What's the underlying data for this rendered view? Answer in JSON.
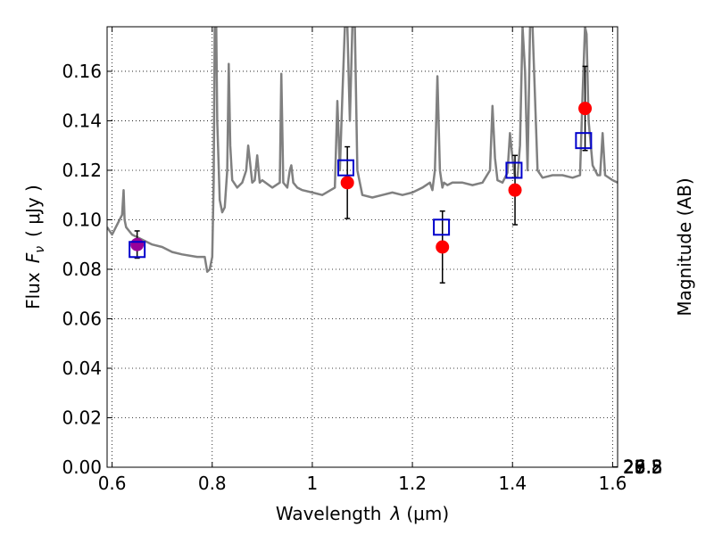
{
  "chart_data": {
    "type": "line",
    "title": "",
    "xlabel_main": "Wavelength",
    "xlabel_symbol": "λ",
    "xlabel_unit": "(μm)",
    "ylabel_main": "Flux",
    "ylabel_symbol": "F",
    "ylabel_subscript": "ν",
    "ylabel_unit": "( μJy )",
    "ylabel_right": "Magnitude (AB)",
    "xlim": [
      0.59,
      1.61
    ],
    "ylim": [
      0.0,
      0.178
    ],
    "grid": true,
    "x_ticks": [
      {
        "value": 0.6,
        "label": "0.6"
      },
      {
        "value": 0.8,
        "label": "0.8"
      },
      {
        "value": 1.0,
        "label": "1"
      },
      {
        "value": 1.2,
        "label": "1.2"
      },
      {
        "value": 1.4,
        "label": "1.4"
      },
      {
        "value": 1.6,
        "label": "1.6"
      }
    ],
    "y_ticks": [
      {
        "value": 0.0,
        "label": "0.00"
      },
      {
        "value": 0.02,
        "label": "0.02"
      },
      {
        "value": 0.04,
        "label": "0.04"
      },
      {
        "value": 0.06,
        "label": "0.06"
      },
      {
        "value": 0.08,
        "label": "0.08"
      },
      {
        "value": 0.1,
        "label": "0.10"
      },
      {
        "value": 0.12,
        "label": "0.12"
      },
      {
        "value": 0.14,
        "label": "0.14"
      },
      {
        "value": 0.16,
        "label": "0.16"
      }
    ],
    "mag_ticks": [
      {
        "mag": 25.8,
        "label": "25.8"
      },
      {
        "mag": 26.0,
        "label": "26"
      },
      {
        "mag": 26.2,
        "label": "26.2"
      },
      {
        "mag": 26.5,
        "label": "26.5"
      },
      {
        "mag": 27.0,
        "label": "27"
      },
      {
        "mag": 27.5,
        "label": "27.5"
      },
      {
        "mag": 28.0,
        "label": "28"
      },
      {
        "mag": 29.0,
        "label": "29"
      }
    ],
    "colors": {
      "spectrum": "#808080",
      "observed": "#ff0000",
      "model": "#0000cc",
      "errorbar": "#000000",
      "grid": "#000000",
      "overlap": "#990099"
    },
    "series": [
      {
        "kind": "line",
        "x": [
          0.59,
          0.6,
          0.61,
          0.62,
          0.623,
          0.625,
          0.628,
          0.64,
          0.66,
          0.68,
          0.7,
          0.72,
          0.74,
          0.77,
          0.785,
          0.79,
          0.795,
          0.8,
          0.803,
          0.805,
          0.808,
          0.81,
          0.815,
          0.82,
          0.825,
          0.83,
          0.833,
          0.836,
          0.84,
          0.85,
          0.86,
          0.868,
          0.872,
          0.88,
          0.885,
          0.89,
          0.895,
          0.9,
          0.92,
          0.935,
          0.938,
          0.942,
          0.95,
          0.955,
          0.958,
          0.962,
          0.97,
          0.98,
          1.0,
          1.02,
          1.045,
          1.05,
          1.055,
          1.06,
          1.065,
          1.07,
          1.075,
          1.08,
          1.085,
          1.09,
          1.1,
          1.12,
          1.14,
          1.16,
          1.18,
          1.2,
          1.22,
          1.235,
          1.24,
          1.245,
          1.25,
          1.255,
          1.26,
          1.263,
          1.27,
          1.28,
          1.3,
          1.32,
          1.34,
          1.355,
          1.36,
          1.365,
          1.37,
          1.38,
          1.39,
          1.395,
          1.4,
          1.405,
          1.41,
          1.415,
          1.42,
          1.425,
          1.43,
          1.435,
          1.44,
          1.45,
          1.46,
          1.48,
          1.5,
          1.52,
          1.535,
          1.54,
          1.545,
          1.548,
          1.552,
          1.56,
          1.57,
          1.575,
          1.58,
          1.585,
          1.6,
          1.61
        ],
        "y": [
          0.097,
          0.094,
          0.098,
          0.102,
          0.112,
          0.1,
          0.097,
          0.094,
          0.092,
          0.09,
          0.089,
          0.087,
          0.086,
          0.085,
          0.085,
          0.079,
          0.08,
          0.085,
          0.115,
          0.178,
          0.178,
          0.14,
          0.108,
          0.103,
          0.105,
          0.12,
          0.163,
          0.13,
          0.116,
          0.113,
          0.115,
          0.12,
          0.13,
          0.115,
          0.116,
          0.126,
          0.115,
          0.116,
          0.113,
          0.115,
          0.159,
          0.115,
          0.113,
          0.12,
          0.122,
          0.115,
          0.113,
          0.112,
          0.111,
          0.11,
          0.113,
          0.148,
          0.12,
          0.15,
          0.178,
          0.178,
          0.14,
          0.178,
          0.178,
          0.12,
          0.11,
          0.109,
          0.11,
          0.111,
          0.11,
          0.111,
          0.113,
          0.115,
          0.112,
          0.12,
          0.158,
          0.12,
          0.113,
          0.115,
          0.114,
          0.115,
          0.115,
          0.114,
          0.115,
          0.12,
          0.146,
          0.125,
          0.116,
          0.115,
          0.119,
          0.135,
          0.125,
          0.117,
          0.117,
          0.13,
          0.178,
          0.16,
          0.12,
          0.178,
          0.178,
          0.12,
          0.117,
          0.118,
          0.118,
          0.117,
          0.118,
          0.15,
          0.178,
          0.175,
          0.14,
          0.122,
          0.118,
          0.118,
          0.135,
          0.118,
          0.116,
          0.115
        ]
      },
      {
        "kind": "observed",
        "x": [
          0.65,
          1.07,
          1.26,
          1.405,
          1.545
        ],
        "y": [
          0.09,
          0.115,
          0.089,
          0.112,
          0.145
        ],
        "err": [
          0.0055,
          0.0145,
          0.0145,
          0.014,
          0.017
        ]
      },
      {
        "kind": "model",
        "x": [
          0.65,
          1.067,
          1.258,
          1.403,
          1.542
        ],
        "y": [
          0.088,
          0.121,
          0.097,
          0.12,
          0.132
        ]
      }
    ]
  }
}
